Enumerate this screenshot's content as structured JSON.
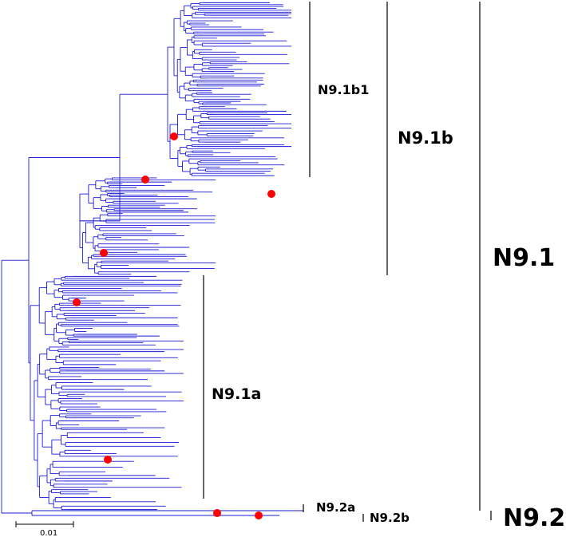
{
  "colors": {
    "branch": "#1a1ad6",
    "bracket": "#000000",
    "marker": "#ff0000",
    "background": "#ffffff"
  },
  "labels": {
    "n91b1": "N9.1b1",
    "n91b": "N9.1b",
    "n91": "N9.1",
    "n91a": "N9.1a",
    "n92a": "N9.2a",
    "n92b": "N9.2b",
    "n92": "N9.2"
  },
  "scale_bar": {
    "label": "0.01"
  },
  "marker_count": 8
}
